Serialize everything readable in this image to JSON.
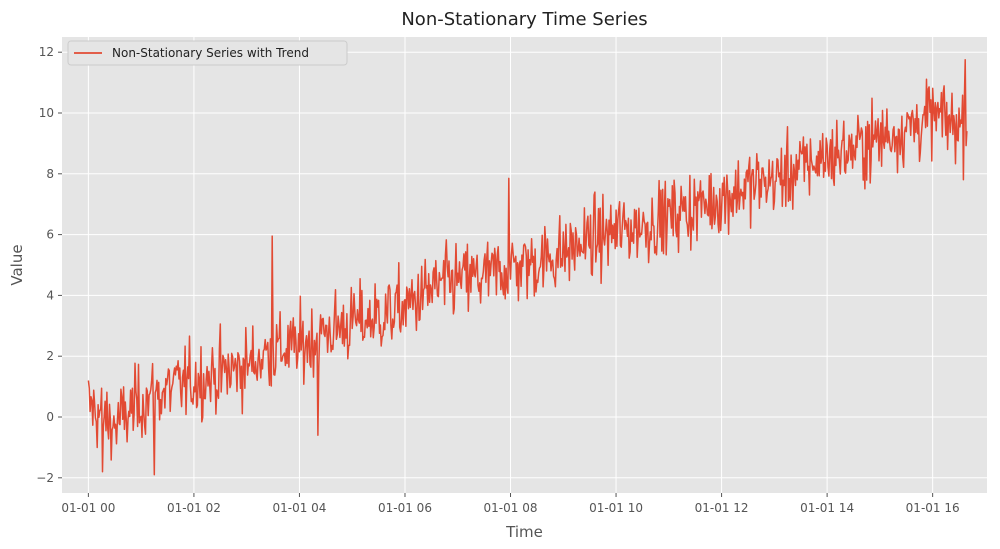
{
  "chart_data": {
    "type": "line",
    "title": "Non-Stationary Time Series",
    "xlabel": "Time",
    "ylabel": "Value",
    "xlim_hours": [
      -0.5,
      17.03
    ],
    "ylim": [
      -2.5,
      12.5
    ],
    "x_ticks": [
      {
        "label": "01-01 00",
        "hour": 0
      },
      {
        "label": "01-01 02",
        "hour": 2
      },
      {
        "label": "01-01 04",
        "hour": 4
      },
      {
        "label": "01-01 06",
        "hour": 6
      },
      {
        "label": "01-01 08",
        "hour": 8
      },
      {
        "label": "01-01 10",
        "hour": 10
      },
      {
        "label": "01-01 12",
        "hour": 12
      },
      {
        "label": "01-01 14",
        "hour": 14
      },
      {
        "label": "01-01 16",
        "hour": 16
      }
    ],
    "y_ticks": [
      {
        "label": "−2",
        "value": -2
      },
      {
        "label": "0",
        "value": 0
      },
      {
        "label": "2",
        "value": 2
      },
      {
        "label": "4",
        "value": 4
      },
      {
        "label": "6",
        "value": 6
      },
      {
        "label": "8",
        "value": 8
      },
      {
        "label": "10",
        "value": 10
      },
      {
        "label": "12",
        "value": 12
      }
    ],
    "grid": true,
    "legend_position": "top-left",
    "series": [
      {
        "name": "Non-Stationary Series with Trend",
        "color": "#E24A33",
        "x_hours": [
          0,
          0.5,
          1,
          1.5,
          2,
          2.5,
          3,
          3.5,
          4,
          4.5,
          5,
          5.5,
          6,
          6.5,
          7,
          7.5,
          8,
          8.5,
          9,
          9.5,
          10,
          10.5,
          11,
          11.5,
          12,
          12.5,
          13,
          13.5,
          14,
          14.5,
          15,
          15.5,
          16,
          16.5,
          16.65
        ],
        "y": [
          0.4,
          -0.3,
          0.5,
          0.9,
          1.2,
          1.4,
          1.7,
          2.2,
          2.3,
          2.8,
          3.1,
          3.3,
          3.6,
          4.2,
          4.5,
          4.6,
          4.9,
          5.1,
          5.4,
          5.8,
          6.1,
          6.3,
          6.6,
          6.9,
          7.2,
          7.6,
          7.8,
          8.2,
          8.6,
          8.8,
          9.2,
          9.5,
          9.9,
          9.6,
          9.8
        ],
        "annotated_points": [
          {
            "hour": 0.25,
            "value": -1.8
          },
          {
            "hour": 1.25,
            "value": -1.9
          },
          {
            "hour": 3.48,
            "value": 5.95
          },
          {
            "hour": 4.35,
            "value": -0.6
          },
          {
            "hour": 7.95,
            "value": 7.85
          },
          {
            "hour": 16.6,
            "value": 11.75
          }
        ]
      }
    ]
  }
}
